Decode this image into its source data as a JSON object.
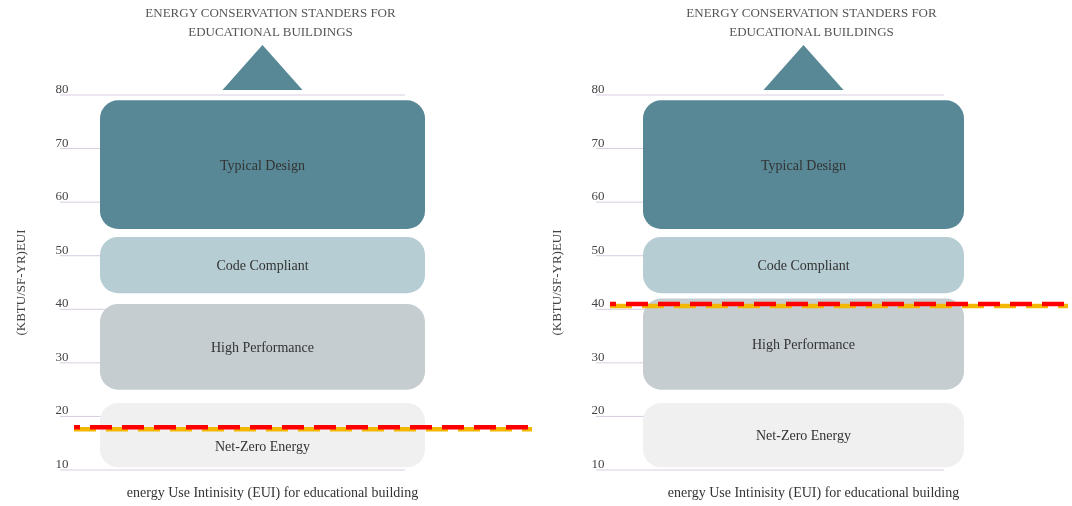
{
  "chart_data": [
    {
      "type": "bar",
      "title": "ENERGY CONSERVATION STANDERS FOR EDUCATIONAL BUILDINGS",
      "xlabel": "energy Use Intinisity  (EUI) for educational building",
      "ylabel": "(KBTU/SF-YR)EUI",
      "ylim": [
        10,
        80
      ],
      "yticks": [
        10,
        20,
        30,
        40,
        50,
        60,
        70,
        80
      ],
      "grid": "y",
      "categories": [
        null
      ],
      "series": [
        {
          "name": "Typical Design",
          "color": "#588896",
          "values": [
            24
          ],
          "base": [
            55
          ]
        },
        {
          "name": "Code Compliant",
          "color": "#b6cdd3",
          "values": [
            10.5
          ],
          "base": [
            43
          ]
        },
        {
          "name": "High Performance",
          "color": "#c5cdd0",
          "values": [
            16
          ],
          "base": [
            25
          ]
        },
        {
          "name": "Net-Zero Energy",
          "color": "#f0f0f0",
          "values": [
            12
          ],
          "base": [
            10.5
          ]
        }
      ],
      "ref_lines": [
        {
          "axis": "y",
          "value": 17.6,
          "color": "#f5b800",
          "line_style": "dashed"
        },
        {
          "axis": "y",
          "value": 18,
          "color": "#ff0000",
          "line_style": "dashed"
        }
      ]
    },
    {
      "type": "bar",
      "title": "ENERGY CONSERVATION STANDERS FOR EDUCATIONAL BUILDINGS",
      "xlabel": "energy Use Intinisity  (EUI) for educational building",
      "ylabel": "(KBTU/SF-YR)EUI",
      "ylim": [
        10,
        80
      ],
      "yticks": [
        10,
        20,
        30,
        40,
        50,
        60,
        70,
        80
      ],
      "grid": "y",
      "categories": [
        null
      ],
      "series": [
        {
          "name": "Typical Design",
          "color": "#588896",
          "values": [
            24
          ],
          "base": [
            55
          ]
        },
        {
          "name": "Code Compliant",
          "color": "#b6cdd3",
          "values": [
            10.5
          ],
          "base": [
            43
          ]
        },
        {
          "name": "High Performance",
          "color": "#c5cdd0",
          "values": [
            17
          ],
          "base": [
            25
          ]
        },
        {
          "name": "Net-Zero Energy",
          "color": "#f0f0f0",
          "values": [
            12
          ],
          "base": [
            10.5
          ]
        }
      ],
      "ref_lines": [
        {
          "axis": "y",
          "value": 40.6,
          "color": "#f5b800",
          "line_style": "dashed"
        },
        {
          "axis": "y",
          "value": 41,
          "color": "#ff0000",
          "line_style": "dashed"
        }
      ]
    }
  ]
}
